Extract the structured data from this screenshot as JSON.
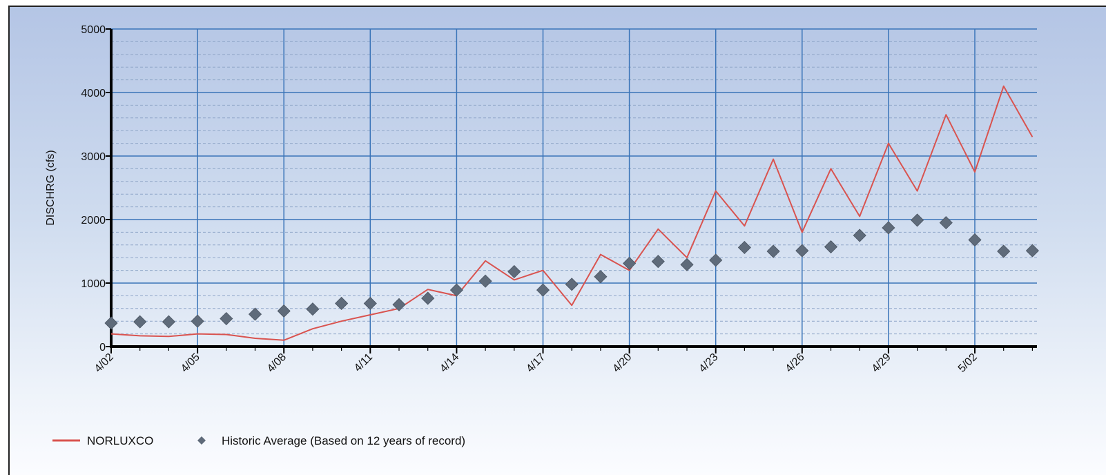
{
  "chart_data": {
    "type": "line",
    "title": "",
    "xlabel": "",
    "ylabel": "DISCHRG (cfs)",
    "ylim": [
      0,
      5000
    ],
    "yticks": [
      0,
      1000,
      2000,
      3000,
      4000,
      5000
    ],
    "x_axis": {
      "unit": "day",
      "start_label": "4/02",
      "end_label": "5/04"
    },
    "x_tick_labels": [
      "4/02",
      "4/05",
      "4/08",
      "4/11",
      "4/14",
      "4/17",
      "4/20",
      "4/23",
      "4/26",
      "4/29",
      "5/02"
    ],
    "grid": {
      "major": true,
      "minor_dashed": true
    },
    "legend": {
      "position": "bottom-left"
    },
    "colors": {
      "flow": "#d9534f",
      "average": "#5f6b7a",
      "grid_major": "#3a74b8",
      "grid_minor": "#8fa6c8"
    },
    "series": [
      {
        "name": "NORLUXCO",
        "kind": "line",
        "points": [
          [
            "4/02",
            200
          ],
          [
            "4/03",
            170
          ],
          [
            "4/04",
            160
          ],
          [
            "4/05",
            200
          ],
          [
            "4/06",
            190
          ],
          [
            "4/07",
            130
          ],
          [
            "4/08",
            100
          ],
          [
            "4/09",
            280
          ],
          [
            "4/10",
            400
          ],
          [
            "4/11",
            500
          ],
          [
            "4/12",
            600
          ],
          [
            "4/13",
            900
          ],
          [
            "4/14",
            800
          ],
          [
            "4/15",
            1350
          ],
          [
            "4/16",
            1050
          ],
          [
            "4/17",
            1200
          ],
          [
            "4/18",
            650
          ],
          [
            "4/19",
            1450
          ],
          [
            "4/20",
            1200
          ],
          [
            "4/21",
            1850
          ],
          [
            "4/22",
            1400
          ],
          [
            "4/23",
            2450
          ],
          [
            "4/24",
            1900
          ],
          [
            "4/25",
            2950
          ],
          [
            "4/26",
            1800
          ],
          [
            "4/27",
            2800
          ],
          [
            "4/28",
            2050
          ],
          [
            "4/29",
            3200
          ],
          [
            "4/30",
            2450
          ],
          [
            "5/01",
            3650
          ],
          [
            "5/02",
            2750
          ],
          [
            "5/03",
            4100
          ],
          [
            "5/04",
            3300
          ]
        ]
      },
      {
        "name": "Historic Average (Based on 12 years of record)",
        "kind": "scatter",
        "marker": "diamond",
        "points": [
          [
            "4/02",
            370
          ],
          [
            "4/03",
            390
          ],
          [
            "4/04",
            390
          ],
          [
            "4/05",
            400
          ],
          [
            "4/06",
            440
          ],
          [
            "4/07",
            510
          ],
          [
            "4/08",
            560
          ],
          [
            "4/09",
            590
          ],
          [
            "4/10",
            680
          ],
          [
            "4/11",
            680
          ],
          [
            "4/12",
            660
          ],
          [
            "4/13",
            760
          ],
          [
            "4/14",
            890
          ],
          [
            "4/15",
            1030
          ],
          [
            "4/16",
            1180
          ],
          [
            "4/17",
            890
          ],
          [
            "4/18",
            980
          ],
          [
            "4/19",
            1100
          ],
          [
            "4/20",
            1310
          ],
          [
            "4/21",
            1340
          ],
          [
            "4/22",
            1290
          ],
          [
            "4/23",
            1360
          ],
          [
            "4/24",
            1560
          ],
          [
            "4/25",
            1500
          ],
          [
            "4/26",
            1510
          ],
          [
            "4/27",
            1570
          ],
          [
            "4/28",
            1750
          ],
          [
            "4/29",
            1870
          ],
          [
            "4/30",
            1990
          ],
          [
            "5/01",
            1950
          ],
          [
            "5/02",
            1680
          ],
          [
            "5/03",
            1500
          ],
          [
            "5/04",
            1510
          ]
        ]
      }
    ]
  }
}
